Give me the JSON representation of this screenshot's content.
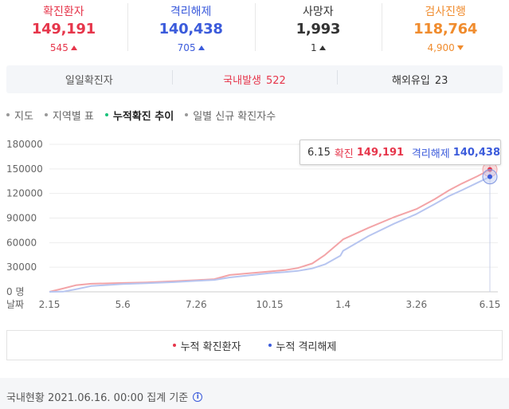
{
  "stats": [
    {
      "label": "확진환자",
      "value": "149,191",
      "delta": "545",
      "dir": "up",
      "color": "#e6364b",
      "value_color": "#e6364b",
      "delta_color": "#e6364b"
    },
    {
      "label": "격리해제",
      "value": "140,438",
      "delta": "705",
      "dir": "up",
      "color": "#3b5bdb",
      "value_color": "#3b5bdb",
      "delta_color": "#3b5bdb"
    },
    {
      "label": "사망자",
      "value": "1,993",
      "delta": "1",
      "dir": "up",
      "color": "#333333",
      "value_color": "#333333",
      "delta_color": "#333333"
    },
    {
      "label": "검사진행",
      "value": "118,764",
      "delta": "4,900",
      "dir": "down",
      "color": "#f08c2e",
      "value_color": "#f08c2e",
      "delta_color": "#f08c2e"
    }
  ],
  "daily": {
    "label": "일일확진자",
    "domestic_label": "국내발생",
    "domestic_value": "522",
    "overseas_label": "해외유입",
    "overseas_value": "23"
  },
  "tabs": [
    {
      "label": "지도",
      "active": false
    },
    {
      "label": "지역별 표",
      "active": false
    },
    {
      "label": "누적확진 추이",
      "active": true
    },
    {
      "label": "일별 신규 확진자수",
      "active": false
    }
  ],
  "tooltip": {
    "date": "6.15",
    "confirmed_label": "확진",
    "confirmed_value": "149,191",
    "released_label": "격리해제",
    "released_value": "140,438"
  },
  "chart_data": {
    "type": "line",
    "x_ticks": [
      "2.15",
      "5.6",
      "7.26",
      "10.15",
      "1.4",
      "3.26",
      "6.15"
    ],
    "x_axis_label": "날짜",
    "y_ticks": [
      "180000",
      "150000",
      "120000",
      "90000",
      "60000",
      "30000",
      "0 명"
    ],
    "ylim": [
      0,
      180000
    ],
    "grid": true,
    "series": [
      {
        "name": "누적 확진환자",
        "color": "#f3a4a7",
        "x": [
          "2.15",
          "3.1",
          "3.15",
          "4.1",
          "5.6",
          "6.1",
          "7.1",
          "7.26",
          "8.15",
          "9.1",
          "10.15",
          "11.1",
          "11.15",
          "12.1",
          "12.15",
          "1.1",
          "1.4",
          "2.1",
          "3.1",
          "3.26",
          "4.15",
          "5.1",
          "5.15",
          "6.1",
          "6.15"
        ],
        "values": [
          30,
          4000,
          8000,
          9800,
          10800,
          11500,
          12800,
          14200,
          15500,
          20500,
          24800,
          26500,
          29000,
          34500,
          45000,
          61000,
          64000,
          78000,
          91000,
          101000,
          113000,
          124000,
          132000,
          141000,
          149191
        ]
      },
      {
        "name": "누적 격리해제",
        "color": "#b7c5f0",
        "x": [
          "2.15",
          "3.1",
          "3.15",
          "4.1",
          "5.6",
          "6.1",
          "7.1",
          "7.26",
          "8.15",
          "9.1",
          "10.15",
          "11.1",
          "11.15",
          "12.1",
          "12.15",
          "1.1",
          "1.4",
          "2.1",
          "3.1",
          "3.26",
          "4.15",
          "5.1",
          "5.15",
          "6.1",
          "6.15"
        ],
        "values": [
          0,
          200,
          3000,
          7000,
          9500,
          10500,
          11800,
          13300,
          14500,
          17500,
          22800,
          24000,
          25500,
          28500,
          33500,
          44000,
          50000,
          68000,
          83000,
          95000,
          107000,
          117000,
          124000,
          133000,
          140438
        ]
      }
    ]
  },
  "legend": {
    "confirmed": "누적 확진환자",
    "released": "누적 격리해제"
  },
  "footer": {
    "text": "국내현황 2021.06.16. 00:00 집계 기준"
  }
}
